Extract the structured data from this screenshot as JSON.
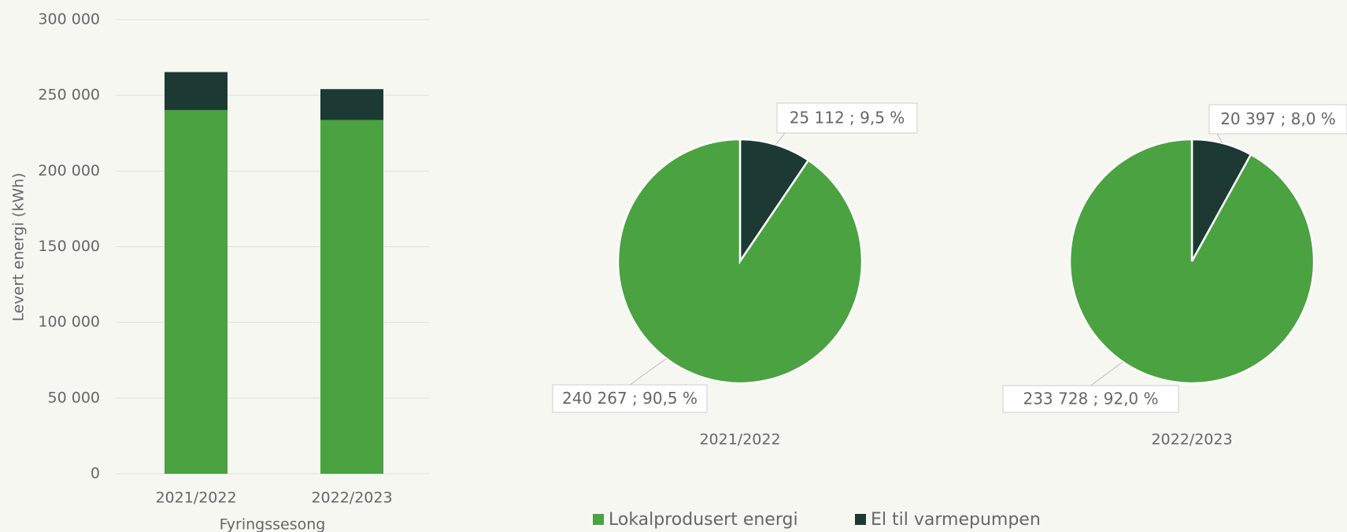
{
  "chart_data": [
    {
      "type": "bar",
      "stacked": true,
      "y_label": "Levert energi (kWh)",
      "x_label": "Fyringssesong",
      "categories": [
        "2021/2022",
        "2022/2023"
      ],
      "series": [
        {
          "name": "Lokalprodusert energi",
          "color": "#4aa240",
          "values": [
            240267,
            233728
          ]
        },
        {
          "name": "El til varmepumpen",
          "color": "#1c3a33",
          "values": [
            25112,
            20397
          ]
        }
      ],
      "ylim": [
        0,
        300000
      ],
      "yticks": [
        0,
        {
          "value": 50000,
          "label": "50 000"
        },
        {
          "value": 100000,
          "label": "100 000"
        },
        {
          "value": 150000,
          "label": "150 000"
        },
        {
          "value": 200000,
          "label": "200 000"
        },
        {
          "value": 250000,
          "label": "250 000"
        },
        {
          "value": 300000,
          "label": "300 000"
        }
      ],
      "grid": true,
      "legend": "bottom"
    },
    {
      "type": "pie",
      "title": "2021/2022",
      "colors": [
        "#4aa240",
        "#1c3a33"
      ],
      "values": [
        240267,
        25112
      ],
      "value_labels": [
        "240 267 ; 90,5 %",
        "25 112 ; 9,5 %"
      ]
    },
    {
      "type": "pie",
      "title": "2022/2023",
      "colors": [
        "#4aa240",
        "#1c3a33"
      ],
      "values": [
        233728,
        20397
      ],
      "value_labels": [
        "233 728 ; 92,0 %",
        "20 397 ; 8,0 %"
      ]
    }
  ]
}
